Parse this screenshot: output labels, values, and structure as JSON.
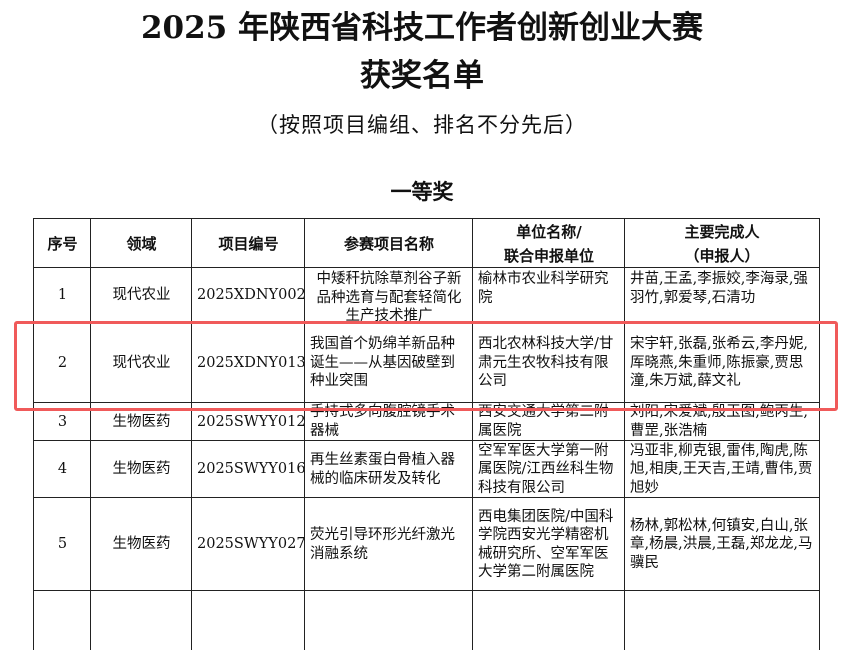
{
  "document": {
    "title_line1": "2025 年陕西省科技工作者创新创业大赛",
    "title_line2": "获奖名单",
    "subtitle": "（按照项目编组、排名不分先后）",
    "section": "一等奖"
  },
  "table": {
    "headers": [
      "序号",
      "领域",
      "项目编号",
      "参赛项目名称",
      "单位名称/\n联合申报单位",
      "主要完成人\n（申报人）"
    ],
    "rows": [
      [
        "1",
        "现代农业",
        "2025XDNY002",
        "中矮秆抗除草剂谷子新品种选育与配套轻简化生产技术推广",
        "榆林市农业科学研究院",
        "井苗,王孟,李振姣,李海录,强羽竹,郭爱琴,石清功"
      ],
      [
        "2",
        "现代农业",
        "2025XDNY013",
        "我国首个奶绵羊新品种诞生——从基因破壁到种业突围",
        "西北农林科技大学/甘肃元生农牧科技有限公司",
        "宋宇轩,张磊,张希云,李丹妮,厍晓燕,朱重师,陈振豪,贾思潼,朱万斌,薛文礼"
      ],
      [
        "3",
        "生物医药",
        "2025SWYY012",
        "手持式多向腹腔镜手术器械",
        "西安交通大学第二附属医院",
        "刘阳,宋爱斌,殷玉图,鲍丙生,曹罡,张浩楠"
      ],
      [
        "4",
        "生物医药",
        "2025SWYY016",
        "再生丝素蛋白骨植入器械的临床研发及转化",
        "空军军医大学第一附属医院/江西丝科生物科技有限公司",
        "冯亚非,柳克银,雷伟,陶虎,陈旭,相庚,王天吉,王靖,曹伟,贾旭妙"
      ],
      [
        "5",
        "生物医药",
        "2025SWYY027",
        "荧光引导环形光纤激光消融系统",
        "西电集团医院/中国科学院西安光学精密机械研究所、空军军医大学第二附属医院",
        "杨林,郭松林,何镇安,白山,张章,杨晨,洪晨,王磊,郑龙龙,马骥民"
      ]
    ],
    "highlighted_row": 2,
    "highlight_color": "#f05a5a"
  }
}
